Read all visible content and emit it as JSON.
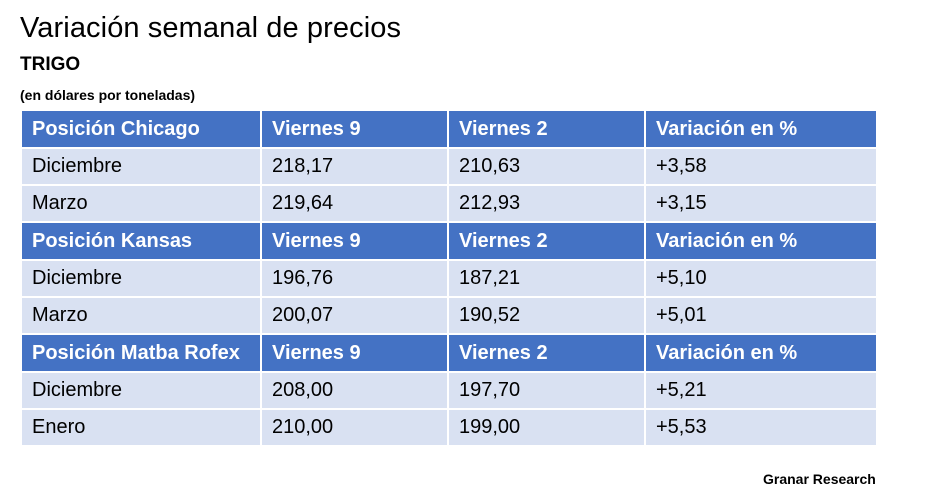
{
  "title": "Variación semanal de precios",
  "subtitle": "TRIGO",
  "unit": "(en dólares por toneladas)",
  "sections": [
    {
      "header": [
        "Posición Chicago",
        "Viernes 9",
        "Viernes 2",
        "Variación en %"
      ],
      "rows": [
        [
          "Diciembre",
          "218,17",
          "210,63",
          "+3,58"
        ],
        [
          "Marzo",
          "219,64",
          "212,93",
          "+3,15"
        ]
      ]
    },
    {
      "header": [
        "Posición Kansas",
        "Viernes 9",
        "Viernes 2",
        "Variación en %"
      ],
      "rows": [
        [
          "Diciembre",
          "196,76",
          "187,21",
          "+5,10"
        ],
        [
          "Marzo",
          "200,07",
          "190,52",
          "+5,01"
        ]
      ]
    },
    {
      "header": [
        "Posición Matba Rofex",
        "Viernes 9",
        "Viernes 2",
        "Variación en %"
      ],
      "rows": [
        [
          "Diciembre",
          "208,00",
          "197,70",
          "+5,21"
        ],
        [
          "Enero",
          "210,00",
          "199,00",
          "+5,53"
        ]
      ]
    }
  ],
  "credit": "Granar Research",
  "colors": {
    "header_bg": "#4472c4",
    "row_bg": "#d9e1f2",
    "header_text": "#ffffff"
  }
}
